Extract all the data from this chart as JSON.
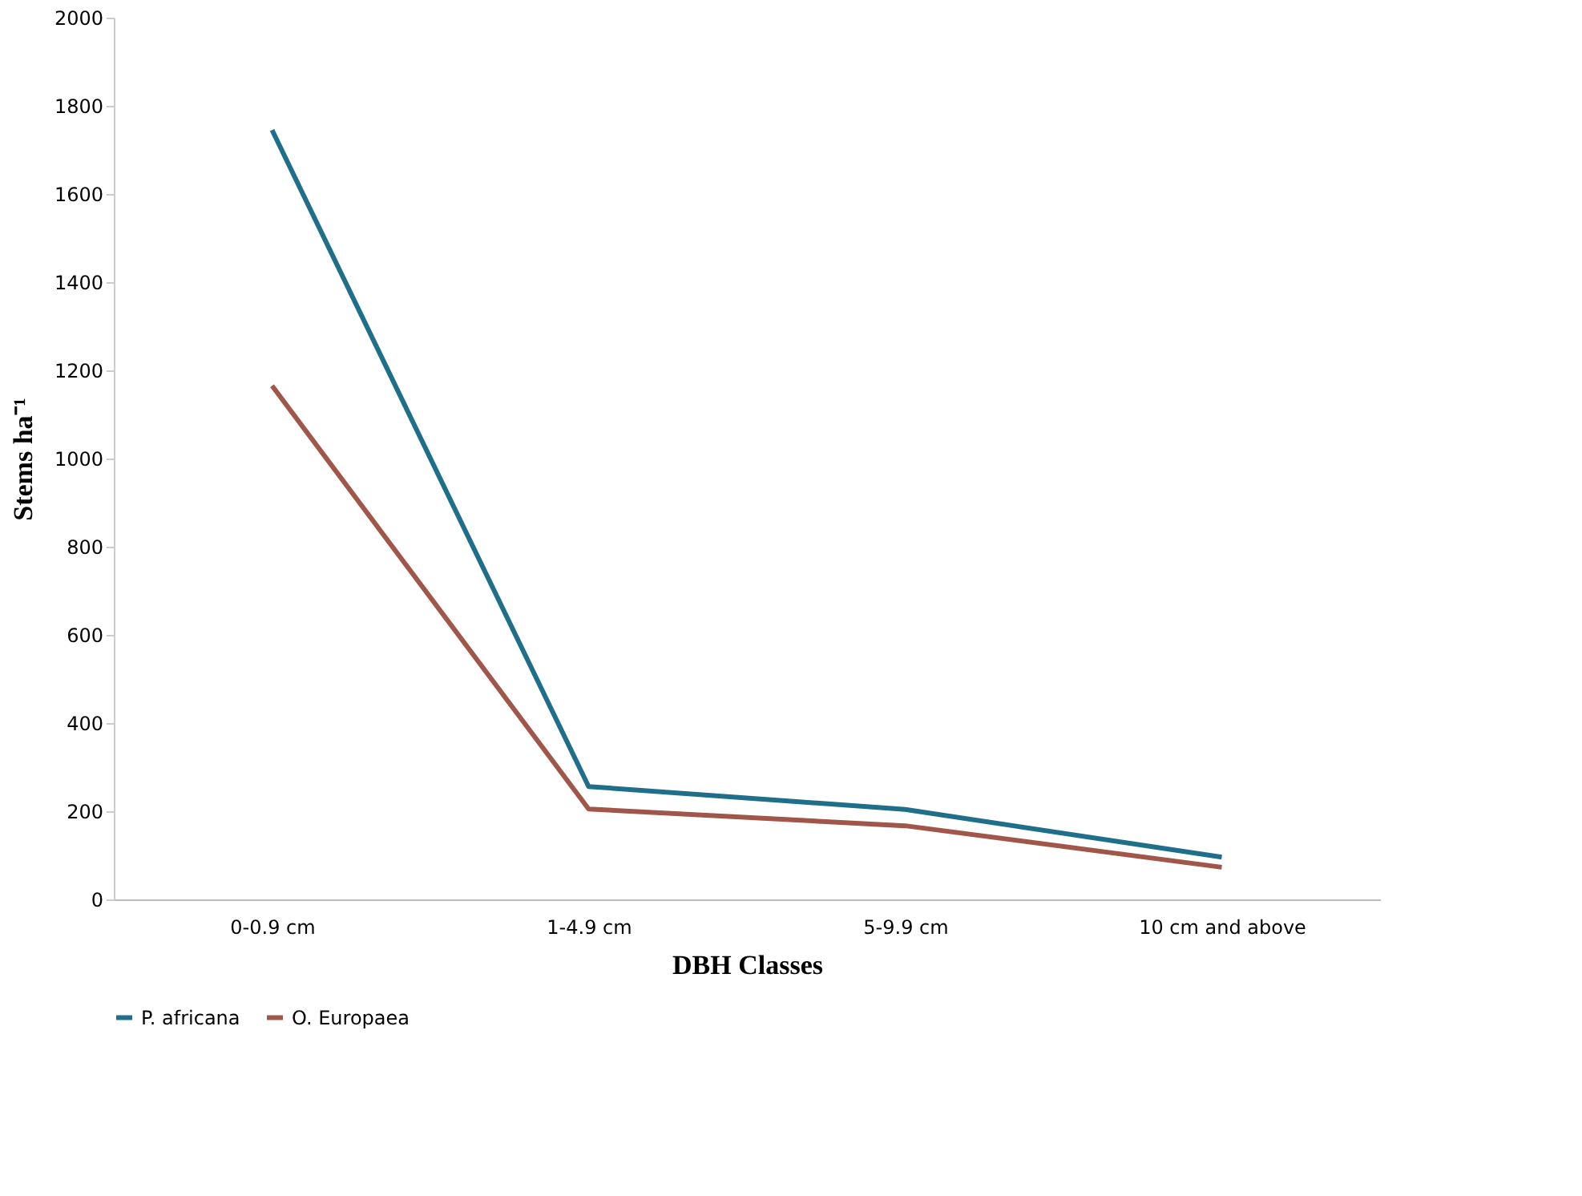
{
  "chart_data": {
    "type": "line",
    "xlabel": "DBH Classes",
    "ylabel": "Stems ha⁻¹",
    "categories": [
      "0-0.9 cm",
      "1-4.9 cm",
      "5-9.9 cm",
      "10 cm and above"
    ],
    "series": [
      {
        "name": "P. africana",
        "color": "#1f6f8b",
        "values": [
          1745,
          256,
          204,
          96
        ]
      },
      {
        "name": "O. Europaea",
        "color": "#a0574a",
        "values": [
          1165,
          205,
          167,
          73
        ]
      }
    ],
    "ylim": [
      0,
      2000
    ],
    "yticks": [
      0,
      200,
      400,
      600,
      800,
      1000,
      1200,
      1400,
      1600,
      1800,
      2000
    ],
    "grid": false,
    "legend": "bottom",
    "marker": "none",
    "line_style": "solid"
  }
}
